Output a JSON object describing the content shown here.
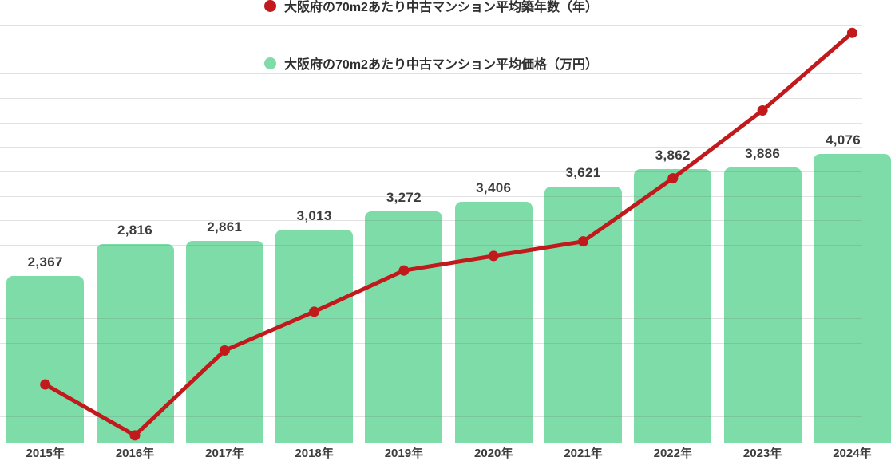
{
  "chart_data": {
    "type": "bar+line",
    "categories": [
      "2015年",
      "2016年",
      "2017年",
      "2018年",
      "2019年",
      "2020年",
      "2021年",
      "2022年",
      "2023年",
      "2024年"
    ],
    "series": [
      {
        "name": "大阪府の70m2あたり中古マンション平均築年数（年）",
        "type": "line",
        "color": "#c1191c",
        "values": [
          22.4,
          20.3,
          23.8,
          25.4,
          27.1,
          27.7,
          28.3,
          30.9,
          33.7,
          36.9
        ],
        "estimated": true,
        "note": "line value axis not shown on screen; values estimated from gridline spacing"
      },
      {
        "name": "大阪府の70m2あたり中古マンション平均価格（万円）",
        "type": "bar",
        "color": "#7edca8",
        "values": [
          2367,
          2816,
          2861,
          3013,
          3272,
          3406,
          3621,
          3862,
          3886,
          4076
        ]
      }
    ],
    "title": "",
    "xlabel": "",
    "ylabel": "",
    "ylim": [
      0,
      6200
    ],
    "y2lim": [
      20,
      38
    ],
    "grid": true,
    "legend_position": "top-center",
    "x_labels_clipped_at_bottom": true,
    "data_labels_on_bars": true
  }
}
